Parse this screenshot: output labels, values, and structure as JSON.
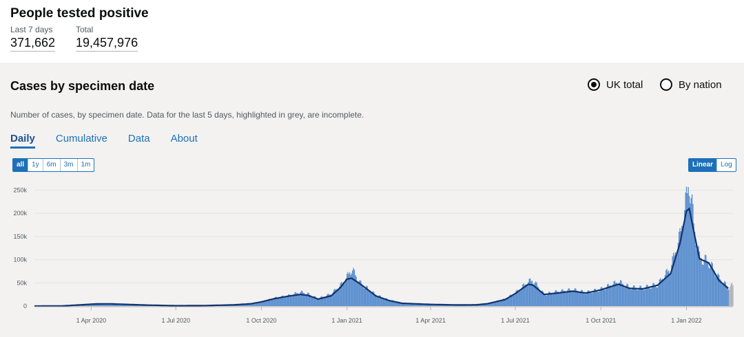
{
  "header": {
    "title": "People tested positive",
    "stats": [
      {
        "label": "Last 7 days",
        "value": "371,662"
      },
      {
        "label": "Total",
        "value": "19,457,976"
      }
    ]
  },
  "card": {
    "title": "Cases by specimen date",
    "description": "Number of cases, by specimen date. Data for the last 5 days, highlighted in grey, are incomplete.",
    "radios": [
      {
        "label": "UK total",
        "selected": true
      },
      {
        "label": "By nation",
        "selected": false
      }
    ],
    "tabs": [
      "Daily",
      "Cumulative",
      "Data",
      "About"
    ],
    "active_tab": "Daily",
    "range_buttons": [
      "all",
      "1y",
      "6m",
      "3m",
      "1m"
    ],
    "active_range": "all",
    "scale_buttons": [
      "Linear",
      "Log"
    ],
    "active_scale": "Linear"
  },
  "colors": {
    "bars": "#5b8fcf",
    "bars_incomplete": "#b1b4b6",
    "average_line": "#12326b",
    "accent": "#1d70b8"
  },
  "chart_data": {
    "type": "bar",
    "title": "",
    "xlabel": "",
    "ylabel": "",
    "ylim": [
      0,
      270000
    ],
    "y_ticks": [
      0,
      50000,
      100000,
      150000,
      200000,
      250000
    ],
    "y_tick_labels": [
      "0",
      "50k",
      "100k",
      "150k",
      "200k",
      "250k"
    ],
    "x_tick_labels": [
      "1 Apr 2020",
      "1 Jul 2020",
      "1 Oct 2020",
      "1 Jan 2021",
      "1 Apr 2021",
      "1 Jul 2021",
      "1 Oct 2021",
      "1 Jan 2022"
    ],
    "x_tick_dates": [
      "2020-04-01",
      "2020-07-01",
      "2020-10-01",
      "2021-01-01",
      "2021-04-01",
      "2021-07-01",
      "2021-10-01",
      "2022-01-01"
    ],
    "x_range": [
      "2020-01-31",
      "2022-02-20"
    ],
    "series": [
      {
        "kind": "bars",
        "points": [
          [
            "2020-01-31",
            0
          ],
          [
            "2020-03-01",
            300
          ],
          [
            "2020-03-20",
            2500
          ],
          [
            "2020-04-05",
            4500
          ],
          [
            "2020-04-20",
            5000
          ],
          [
            "2020-05-10",
            3500
          ],
          [
            "2020-06-01",
            2000
          ],
          [
            "2020-07-01",
            700
          ],
          [
            "2020-08-01",
            1000
          ],
          [
            "2020-09-01",
            2500
          ],
          [
            "2020-09-20",
            5000
          ],
          [
            "2020-10-01",
            9000
          ],
          [
            "2020-10-15",
            17000
          ],
          [
            "2020-11-01",
            23000
          ],
          [
            "2020-11-12",
            30000
          ],
          [
            "2020-11-20",
            26000
          ],
          [
            "2020-12-01",
            16000
          ],
          [
            "2020-12-15",
            26000
          ],
          [
            "2020-12-25",
            44000
          ],
          [
            "2021-01-01",
            62000
          ],
          [
            "2021-01-06",
            80000
          ],
          [
            "2021-01-15",
            50000
          ],
          [
            "2021-02-01",
            24000
          ],
          [
            "2021-02-15",
            13000
          ],
          [
            "2021-03-01",
            7000
          ],
          [
            "2021-04-01",
            4000
          ],
          [
            "2021-05-01",
            2500
          ],
          [
            "2021-05-20",
            3000
          ],
          [
            "2021-06-01",
            5000
          ],
          [
            "2021-06-20",
            15000
          ],
          [
            "2021-07-01",
            28000
          ],
          [
            "2021-07-15",
            52000
          ],
          [
            "2021-07-20",
            55000
          ],
          [
            "2021-08-01",
            25000
          ],
          [
            "2021-08-15",
            31000
          ],
          [
            "2021-09-01",
            35000
          ],
          [
            "2021-09-15",
            29000
          ],
          [
            "2021-10-01",
            36000
          ],
          [
            "2021-10-20",
            52000
          ],
          [
            "2021-11-01",
            40000
          ],
          [
            "2021-11-15",
            39000
          ],
          [
            "2021-12-01",
            46000
          ],
          [
            "2021-12-15",
            82000
          ],
          [
            "2021-12-25",
            150000
          ],
          [
            "2022-01-01",
            230000
          ],
          [
            "2022-01-04",
            270000
          ],
          [
            "2022-01-10",
            160000
          ],
          [
            "2022-01-15",
            105000
          ],
          [
            "2022-01-25",
            95000
          ],
          [
            "2022-02-05",
            60000
          ],
          [
            "2022-02-15",
            40000
          ],
          [
            "2022-02-20",
            45000
          ]
        ]
      },
      {
        "kind": "line",
        "name": "",
        "points": [
          [
            "2020-01-31",
            0
          ],
          [
            "2020-03-01",
            300
          ],
          [
            "2020-03-20",
            2500
          ],
          [
            "2020-04-05",
            4500
          ],
          [
            "2020-04-20",
            4800
          ],
          [
            "2020-05-10",
            3500
          ],
          [
            "2020-06-01",
            2000
          ],
          [
            "2020-07-01",
            700
          ],
          [
            "2020-08-01",
            1000
          ],
          [
            "2020-09-01",
            2500
          ],
          [
            "2020-09-20",
            5000
          ],
          [
            "2020-10-01",
            9000
          ],
          [
            "2020-10-15",
            16000
          ],
          [
            "2020-11-01",
            22000
          ],
          [
            "2020-11-12",
            25000
          ],
          [
            "2020-11-20",
            23000
          ],
          [
            "2020-12-01",
            15000
          ],
          [
            "2020-12-15",
            22000
          ],
          [
            "2020-12-25",
            40000
          ],
          [
            "2021-01-01",
            58000
          ],
          [
            "2021-01-06",
            60000
          ],
          [
            "2021-01-15",
            48000
          ],
          [
            "2021-02-01",
            22000
          ],
          [
            "2021-02-15",
            12000
          ],
          [
            "2021-03-01",
            6000
          ],
          [
            "2021-04-01",
            3500
          ],
          [
            "2021-05-01",
            2300
          ],
          [
            "2021-05-20",
            2700
          ],
          [
            "2021-06-01",
            5000
          ],
          [
            "2021-06-20",
            14000
          ],
          [
            "2021-07-01",
            27000
          ],
          [
            "2021-07-15",
            47000
          ],
          [
            "2021-07-20",
            45000
          ],
          [
            "2021-08-01",
            25000
          ],
          [
            "2021-08-15",
            28000
          ],
          [
            "2021-09-01",
            32000
          ],
          [
            "2021-09-15",
            28000
          ],
          [
            "2021-10-01",
            35000
          ],
          [
            "2021-10-20",
            47000
          ],
          [
            "2021-11-01",
            38000
          ],
          [
            "2021-11-15",
            37000
          ],
          [
            "2021-12-01",
            45000
          ],
          [
            "2021-12-15",
            70000
          ],
          [
            "2021-12-25",
            135000
          ],
          [
            "2022-01-01",
            205000
          ],
          [
            "2022-01-04",
            210000
          ],
          [
            "2022-01-10",
            150000
          ],
          [
            "2022-01-15",
            102000
          ],
          [
            "2022-01-25",
            93000
          ],
          [
            "2022-02-05",
            55000
          ],
          [
            "2022-02-15",
            38000
          ],
          [
            "2022-02-20",
            42000
          ]
        ]
      }
    ]
  }
}
